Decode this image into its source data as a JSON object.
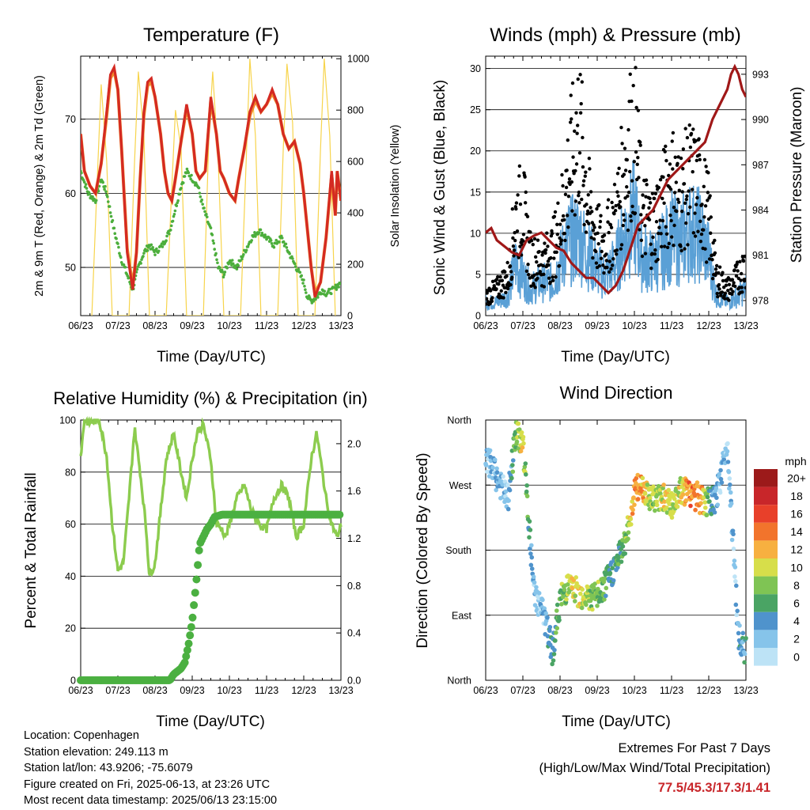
{
  "panels": {
    "temperature": {
      "title": "Temperature (F)",
      "ylabel_left": "2m & 9m T (Red, Orange) & 2m Td (Green)",
      "ylabel_right": "Solar Insolation (Yellow)",
      "xlabel": "Time (Day/UTC)"
    },
    "winds": {
      "title": "Winds (mph) & Pressure (mb)",
      "ylabel_left": "Sonic Wind & Gust (Blue, Black)",
      "ylabel_right": "Station Pressure (Maroon)",
      "xlabel": "Time (Day/UTC)"
    },
    "humidity": {
      "title": "Relative Humidity (%) & Precipitation (in)",
      "ylabel_left": "Percent & Total Rainfall",
      "xlabel": "Time (Day/UTC)"
    },
    "direction": {
      "title": "Wind Direction",
      "ylabel_left": "Direction (Colored By Speed)",
      "xlabel": "Time (Day/UTC)",
      "legend_title": "mph"
    }
  },
  "info": {
    "location": "Location: Copenhagen",
    "elevation": "Station elevation: 249.113 m",
    "latlon": "Station lat/lon: 43.9206; -75.6079",
    "created": "Figure created on Fri, 2025-06-13, at 23:26 UTC",
    "recent": "Most recent data timestamp: 2025/06/13 23:15:00"
  },
  "extremes": {
    "line1": "Extremes For Past 7 Days",
    "line2": "(High/Low/Max Wind/Total Precipitation)",
    "values": "77.5/45.3/17.3/1.41"
  },
  "colors": {
    "temp_2m": "#d42a22",
    "temp_9m": "#f08a2c",
    "dewpoint": "#4cae3c",
    "solar": "#f7d44c",
    "wind": "#5aa0d6",
    "gust": "#000000",
    "pressure": "#a01818",
    "rh": "#8ccc4e",
    "precip": "#4bb041"
  },
  "chart_data": [
    {
      "type": "line",
      "id": "temperature",
      "title": "Temperature (F)",
      "xlabel": "Time (Day/UTC)",
      "ylabel": "2m & 9m T (Red, Orange) & 2m Td (Green)",
      "y2label": "Solar Insolation (Yellow)",
      "xticks": [
        "06/23",
        "07/23",
        "08/23",
        "09/23",
        "10/23",
        "11/23",
        "12/23",
        "13/23"
      ],
      "xlim": [
        0,
        7
      ],
      "ylim": [
        43.5,
        78.5
      ],
      "yticks": [
        50,
        60,
        70
      ],
      "y2lim": [
        0,
        1010
      ],
      "y2ticks": [
        0,
        200,
        400,
        600,
        800,
        1000
      ],
      "series": [
        {
          "name": "2m T",
          "x": [
            0,
            0.1,
            0.25,
            0.4,
            0.55,
            0.7,
            0.8,
            0.9,
            1.0,
            1.1,
            1.25,
            1.4,
            1.5,
            1.6,
            1.7,
            1.8,
            1.9,
            2.0,
            2.15,
            2.25,
            2.35,
            2.45,
            2.55,
            2.7,
            2.85,
            3.0,
            3.1,
            3.2,
            3.35,
            3.5,
            3.65,
            3.75,
            3.85,
            4.0,
            4.15,
            4.25,
            4.4,
            4.55,
            4.7,
            4.85,
            5.0,
            5.15,
            5.3,
            5.45,
            5.6,
            5.75,
            5.9,
            6.0,
            6.1,
            6.2,
            6.3,
            6.45,
            6.6,
            6.75,
            6.85,
            6.9,
            7.0
          ],
          "y": [
            68,
            63,
            61,
            60,
            64,
            71,
            76,
            77,
            74,
            66,
            52,
            47,
            52,
            62,
            71,
            75,
            75.5,
            73,
            68,
            63,
            60,
            59,
            62,
            67,
            72,
            68,
            63,
            62,
            63,
            73,
            68,
            63,
            62,
            60,
            59,
            62,
            66,
            71,
            73,
            71,
            72,
            74,
            72,
            68,
            66,
            67,
            64,
            60,
            55,
            50,
            46,
            48,
            54,
            63,
            57,
            63,
            59
          ]
        },
        {
          "name": "9m T",
          "x": [
            0,
            0.1,
            0.25,
            0.4,
            0.55,
            0.7,
            0.8,
            0.9,
            1.0,
            1.1,
            1.25,
            1.4,
            1.5,
            1.6,
            1.7,
            1.8,
            1.9,
            2.0,
            2.15,
            2.25,
            2.35,
            2.45,
            2.55,
            2.7,
            2.85,
            3.0,
            3.1,
            3.2,
            3.35,
            3.5,
            3.65,
            3.75,
            3.85,
            4.0,
            4.15,
            4.25,
            4.4,
            4.55,
            4.7,
            4.85,
            5.0,
            5.15,
            5.3,
            5.45,
            5.6,
            5.75,
            5.9,
            6.0,
            6.1,
            6.2,
            6.3,
            6.45,
            6.6,
            6.75,
            6.85,
            6.9,
            7.0
          ],
          "y": [
            68,
            63,
            61,
            60,
            64,
            70.5,
            75.5,
            76.5,
            74,
            66,
            52.5,
            47.5,
            52,
            62,
            70.5,
            74.5,
            75,
            73,
            68,
            63,
            60,
            59,
            62,
            67,
            71.5,
            68,
            63,
            62,
            63,
            72.5,
            68,
            63,
            62,
            60,
            59,
            62,
            66,
            70.5,
            72.5,
            71,
            72,
            73.5,
            72,
            68,
            66,
            67,
            64,
            60,
            55,
            50,
            46.5,
            48,
            54,
            62.5,
            57,
            63,
            59
          ]
        },
        {
          "name": "2m Td",
          "x": [
            0,
            0.2,
            0.4,
            0.55,
            0.7,
            0.9,
            1.1,
            1.25,
            1.4,
            1.55,
            1.7,
            1.85,
            2.0,
            2.2,
            2.4,
            2.55,
            2.7,
            2.85,
            3.0,
            3.15,
            3.3,
            3.5,
            3.7,
            3.85,
            4.0,
            4.2,
            4.4,
            4.6,
            4.8,
            5.0,
            5.2,
            5.4,
            5.6,
            5.8,
            6.0,
            6.1,
            6.2,
            6.35,
            6.5,
            6.6,
            6.8,
            7.0
          ],
          "y": [
            63,
            60,
            59,
            62,
            60,
            55,
            51,
            49,
            47,
            50,
            52,
            53,
            52,
            53,
            55,
            58,
            61,
            63,
            62,
            61,
            58,
            55,
            50,
            49,
            51,
            50,
            52,
            54,
            55,
            54,
            53,
            54,
            52,
            50,
            48,
            46,
            45.5,
            46,
            47,
            46.5,
            47,
            48
          ]
        },
        {
          "name": "Solar Insolation",
          "axis": "y2",
          "x": [
            0.3,
            0.45,
            0.55,
            0.7,
            0.85,
            1.3,
            1.45,
            1.55,
            1.7,
            1.85,
            2.3,
            2.45,
            2.55,
            2.7,
            2.85,
            3.3,
            3.45,
            3.55,
            3.7,
            3.85,
            4.3,
            4.45,
            4.55,
            4.7,
            4.85,
            5.3,
            5.45,
            5.55,
            5.7,
            5.85,
            6.3,
            6.45,
            6.55,
            6.7,
            6.85
          ],
          "y": [
            0,
            550,
            900,
            600,
            0,
            0,
            600,
            950,
            700,
            0,
            0,
            500,
            800,
            650,
            0,
            0,
            700,
            950,
            600,
            0,
            0,
            600,
            1000,
            700,
            0,
            0,
            650,
            980,
            750,
            0,
            0,
            650,
            1000,
            700,
            0
          ]
        }
      ]
    },
    {
      "type": "scatter",
      "id": "winds",
      "title": "Winds (mph) & Pressure (mb)",
      "xlabel": "Time (Day/UTC)",
      "ylabel": "Sonic Wind & Gust (Blue, Black)",
      "y2label": "Station Pressure (Maroon)",
      "xticks": [
        "06/23",
        "07/23",
        "08/23",
        "09/23",
        "10/23",
        "11/23",
        "12/23",
        "13/23"
      ],
      "xlim": [
        0,
        7
      ],
      "ylim": [
        0,
        31.5
      ],
      "yticks": [
        0,
        5,
        10,
        15,
        20,
        25,
        30
      ],
      "y2lim": [
        977,
        994.2
      ],
      "y2ticks": [
        978,
        981,
        984,
        987,
        990,
        993
      ],
      "series": [
        {
          "name": "Sonic Wind",
          "x": [
            0,
            0.3,
            0.6,
            0.8,
            1.0,
            1.2,
            1.5,
            1.8,
            2.0,
            2.2,
            2.5,
            2.8,
            3.0,
            3.2,
            3.5,
            3.8,
            4.0,
            4.2,
            4.5,
            4.8,
            5.0,
            5.2,
            5.5,
            5.8,
            6.0,
            6.2,
            6.5,
            6.8,
            7.0
          ],
          "y": [
            2,
            2,
            3,
            8,
            6,
            4,
            5,
            5,
            8,
            11,
            12,
            9,
            7,
            6,
            8,
            13,
            15,
            9,
            8,
            10,
            12,
            11,
            13,
            12,
            9,
            3,
            2,
            3,
            4
          ]
        },
        {
          "name": "Gust",
          "x": [
            0,
            0.3,
            0.6,
            0.8,
            1.0,
            1.2,
            1.5,
            1.8,
            2.0,
            2.2,
            2.5,
            2.8,
            3.0,
            3.2,
            3.5,
            3.8,
            4.0,
            4.2,
            4.5,
            4.8,
            5.0,
            5.2,
            5.5,
            5.8,
            6.0,
            6.2,
            6.5,
            6.8,
            7.0
          ],
          "y": [
            3,
            4,
            6,
            15,
            17,
            9,
            8,
            10,
            14,
            21,
            29,
            16,
            12,
            11,
            15,
            25,
            29,
            16,
            14,
            18,
            21,
            18,
            21,
            19,
            15,
            6,
            4,
            6,
            8
          ]
        },
        {
          "name": "Station Pressure",
          "axis": "y2",
          "x": [
            0,
            0.15,
            0.3,
            0.5,
            0.7,
            0.9,
            1.1,
            1.3,
            1.5,
            1.7,
            1.9,
            2.1,
            2.3,
            2.5,
            2.7,
            2.9,
            3.1,
            3.3,
            3.5,
            3.7,
            3.9,
            4.1,
            4.3,
            4.5,
            4.7,
            4.9,
            5.1,
            5.3,
            5.5,
            5.7,
            5.9,
            6.1,
            6.3,
            6.5,
            6.6,
            6.7,
            6.8,
            6.9,
            7.0
          ],
          "y": [
            982.5,
            982.8,
            982,
            981.6,
            981.2,
            981,
            982,
            982.3,
            982.5,
            982,
            981.5,
            981.3,
            980.5,
            980,
            979.5,
            979.5,
            979,
            978.5,
            979,
            980,
            981.5,
            983,
            983.5,
            984,
            985,
            986,
            986.5,
            987,
            987.5,
            988,
            988.5,
            990,
            991,
            992,
            993,
            993.5,
            993,
            992,
            991.5
          ]
        }
      ]
    },
    {
      "type": "line",
      "id": "humidity",
      "title": "Relative Humidity (%) & Precipitation (in)",
      "xlabel": "Time (Day/UTC)",
      "ylabel": "Percent & Total Rainfall",
      "xticks": [
        "06/23",
        "07/23",
        "08/23",
        "09/23",
        "10/23",
        "11/23",
        "12/23",
        "13/23"
      ],
      "xlim": [
        0,
        7
      ],
      "ylim": [
        0,
        100
      ],
      "yticks": [
        0,
        20,
        40,
        60,
        80,
        100
      ],
      "y2lim": [
        0,
        2.2
      ],
      "y2ticks": [
        0.0,
        0.4,
        0.8,
        1.2,
        1.6,
        2.0
      ],
      "series": [
        {
          "name": "Relative Humidity",
          "x": [
            0,
            0.1,
            0.2,
            0.5,
            0.7,
            0.85,
            1.0,
            1.15,
            1.3,
            1.45,
            1.6,
            1.75,
            1.85,
            2.0,
            2.15,
            2.3,
            2.5,
            2.7,
            2.85,
            3.0,
            3.15,
            3.3,
            3.5,
            3.65,
            3.8,
            3.9,
            4.0,
            4.2,
            4.4,
            4.6,
            4.8,
            5.0,
            5.2,
            5.4,
            5.6,
            5.8,
            6.0,
            6.2,
            6.35,
            6.5,
            6.6,
            6.75,
            6.9,
            7.0
          ],
          "y": [
            86,
            100,
            99,
            100,
            86,
            60,
            42,
            45,
            70,
            97,
            80,
            60,
            40,
            45,
            65,
            85,
            95,
            80,
            70,
            85,
            96,
            98,
            85,
            60,
            58,
            55,
            60,
            70,
            75,
            65,
            60,
            58,
            70,
            75,
            70,
            55,
            60,
            85,
            95,
            80,
            70,
            60,
            55,
            60
          ]
        },
        {
          "name": "Total Rainfall",
          "axis": "y2",
          "x": [
            0,
            1.0,
            2.0,
            2.4,
            2.5,
            2.7,
            2.8,
            2.9,
            3.0,
            3.1,
            3.2,
            3.4,
            3.5,
            3.6,
            3.8,
            4.0,
            5.0,
            6.0,
            7.0
          ],
          "y": [
            0,
            0,
            0,
            0,
            0.05,
            0.1,
            0.15,
            0.3,
            0.5,
            0.8,
            1.15,
            1.28,
            1.32,
            1.38,
            1.4,
            1.4,
            1.4,
            1.4,
            1.4
          ]
        }
      ]
    },
    {
      "type": "scatter",
      "id": "direction",
      "title": "Wind Direction",
      "xlabel": "Time (Day/UTC)",
      "ylabel": "Direction (Colored By Speed)",
      "xticks": [
        "06/23",
        "07/23",
        "08/23",
        "09/23",
        "10/23",
        "11/23",
        "12/23",
        "13/23"
      ],
      "xlim": [
        0,
        7
      ],
      "ylim": [
        0,
        360
      ],
      "yticks": [
        "North",
        "East",
        "South",
        "West",
        "North"
      ],
      "colorbar": {
        "title": "mph",
        "labels": [
          "0",
          "2",
          "4",
          "6",
          "8",
          "10",
          "12",
          "14",
          "16",
          "18",
          "20+"
        ]
      },
      "series": [
        {
          "name": "Direction",
          "x": [
            0.1,
            0.3,
            0.6,
            0.8,
            1.0,
            1.3,
            1.5,
            1.8,
            2.0,
            2.2,
            2.5,
            2.8,
            3.0,
            3.2,
            3.5,
            3.8,
            4.0,
            4.2,
            4.5,
            4.8,
            5.0,
            5.2,
            5.5,
            5.8,
            6.0,
            6.2,
            6.5,
            6.8,
            7.0
          ],
          "y": [
            300,
            280,
            250,
            340,
            330,
            120,
            100,
            40,
            110,
            130,
            120,
            115,
            115,
            130,
            160,
            200,
            260,
            270,
            250,
            255,
            240,
            260,
            260,
            250,
            245,
            250,
            330,
            60,
            40
          ],
          "speed": [
            2,
            3,
            2,
            8,
            10,
            2,
            2,
            5,
            7,
            9,
            11,
            8,
            8,
            6,
            5,
            8,
            14,
            12,
            8,
            11,
            9,
            10,
            14,
            13,
            6,
            3,
            2,
            3,
            4
          ]
        }
      ]
    }
  ]
}
